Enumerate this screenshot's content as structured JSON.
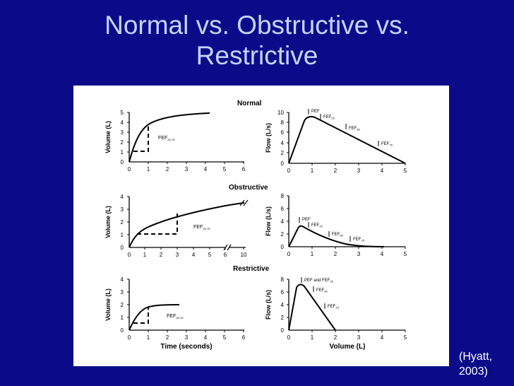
{
  "slide": {
    "title_line1": "Normal vs. Obstructive vs.",
    "title_line2": "Restrictive",
    "citation_line1": "(Hyatt,",
    "citation_line2": "2003)"
  },
  "figure": {
    "rows": [
      {
        "section_label": "Normal",
        "left": {
          "ylabel": "Volume (L)",
          "yticks": [
            "0",
            "1",
            "2",
            "3",
            "4",
            "5"
          ],
          "xticks": [
            "0",
            "1",
            "2",
            "3",
            "4",
            "5",
            "6"
          ],
          "annotation": "FEF",
          "annotation_sub": "25-75"
        },
        "right": {
          "ylabel": "Flow (L/s)",
          "yticks": [
            "0",
            "2",
            "4",
            "6",
            "8",
            "10"
          ],
          "xticks": [
            "0",
            "1",
            "2",
            "3",
            "4",
            "5"
          ],
          "labels": [
            {
              "text": "PEF",
              "sub": ""
            },
            {
              "text": "FEF",
              "sub": "25"
            },
            {
              "text": "FEF",
              "sub": "50"
            },
            {
              "text": "FEF",
              "sub": "75"
            }
          ]
        }
      },
      {
        "section_label": "Obstructive",
        "left": {
          "ylabel": "Volume (L)",
          "yticks": [
            "0",
            "1",
            "2",
            "3",
            "4"
          ],
          "xticks": [
            "0",
            "1",
            "2",
            "3",
            "4",
            "5",
            "6",
            "10"
          ],
          "annotation": "FEF",
          "annotation_sub": "25-75"
        },
        "right": {
          "ylabel": "Flow (L/s)",
          "yticks": [
            "0",
            "2",
            "4",
            "6",
            "8"
          ],
          "xticks": [
            "0",
            "1",
            "2",
            "3",
            "4",
            "5"
          ],
          "labels": [
            {
              "text": "PEF",
              "sub": ""
            },
            {
              "text": "FEF",
              "sub": "25"
            },
            {
              "text": "FEF",
              "sub": "50"
            },
            {
              "text": "FEF",
              "sub": "75"
            }
          ]
        }
      },
      {
        "section_label": "Restrictive",
        "left": {
          "ylabel": "Volume (L)",
          "yticks": [
            "0",
            "1",
            "2",
            "3",
            "4"
          ],
          "xticks": [
            "0",
            "1",
            "2",
            "3",
            "4",
            "5",
            "6"
          ],
          "xlabel": "Time (seconds)",
          "annotation": "FEF",
          "annotation_sub": "25-75"
        },
        "right": {
          "ylabel": "Flow (L/s)",
          "yticks": [
            "0",
            "2",
            "4",
            "6",
            "8"
          ],
          "xticks": [
            "0",
            "1",
            "2",
            "3",
            "4",
            "5"
          ],
          "xlabel": "Volume (L)",
          "labels": [
            {
              "text": "PEF and FEF",
              "sub": "25"
            },
            {
              "text": "FEF",
              "sub": "50"
            },
            {
              "text": "FEF",
              "sub": "75"
            }
          ]
        }
      }
    ]
  }
}
